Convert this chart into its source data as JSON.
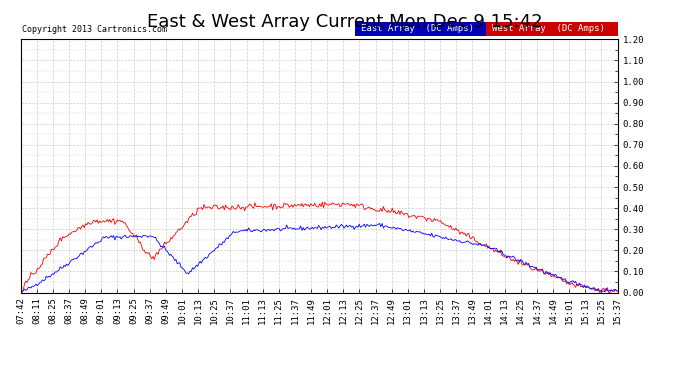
{
  "title": "East & West Array Current Mon Dec 9 15:42",
  "copyright": "Copyright 2013 Cartronics.com",
  "east_label": "East Array  (DC Amps)",
  "west_label": "West Array  (DC Amps)",
  "east_color": "#0000ff",
  "west_color": "#ff0000",
  "east_bg": "#0000bb",
  "west_bg": "#cc0000",
  "ylim": [
    0.0,
    1.2
  ],
  "yticks": [
    0.0,
    0.1,
    0.2,
    0.3,
    0.4,
    0.5,
    0.6,
    0.7,
    0.8,
    0.9,
    1.0,
    1.1,
    1.2
  ],
  "bg_color": "#ffffff",
  "grid_color": "#cccccc",
  "title_fontsize": 13,
  "tick_fontsize": 6.5,
  "x_labels": [
    "07:42",
    "08:11",
    "08:25",
    "08:37",
    "08:49",
    "09:01",
    "09:13",
    "09:25",
    "09:37",
    "09:49",
    "10:01",
    "10:13",
    "10:25",
    "10:37",
    "11:01",
    "11:13",
    "11:25",
    "11:37",
    "11:49",
    "12:01",
    "12:13",
    "12:25",
    "12:37",
    "12:49",
    "13:01",
    "13:13",
    "13:25",
    "13:37",
    "13:49",
    "14:01",
    "14:13",
    "14:25",
    "14:37",
    "14:49",
    "15:01",
    "15:13",
    "15:25",
    "15:37"
  ]
}
